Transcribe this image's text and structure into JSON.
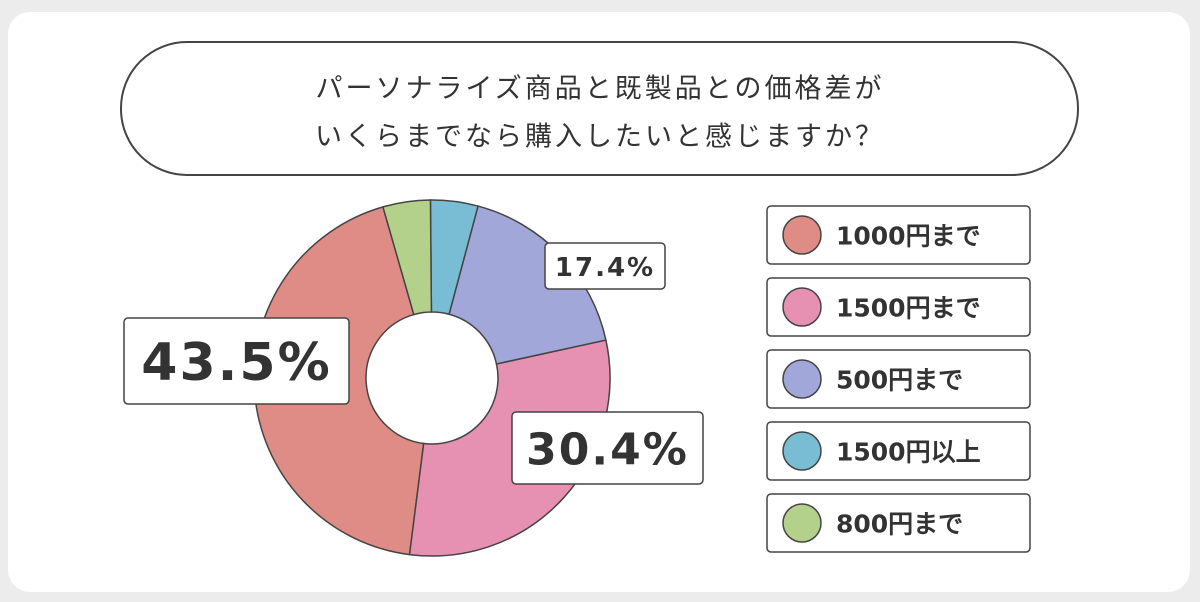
{
  "chart_data": {
    "type": "donut",
    "title": [
      "パーソナライズ商品と既製品との価格差が",
      "いくらまでなら購入したいと感じますか？"
    ],
    "categories": [
      "1000円まで",
      "1500円まで",
      "500円まで",
      "1500円以上",
      "800円まで"
    ],
    "values": [
      43.5,
      30.4,
      17.4,
      4.3,
      4.3
    ],
    "value_labels": [
      "43.5%",
      "30.4%",
      "17.4%",
      null,
      null
    ],
    "colors": [
      "#e08c86",
      "#e691b1",
      "#a1a8d9",
      "#79bdd5",
      "#b3d18b"
    ]
  }
}
